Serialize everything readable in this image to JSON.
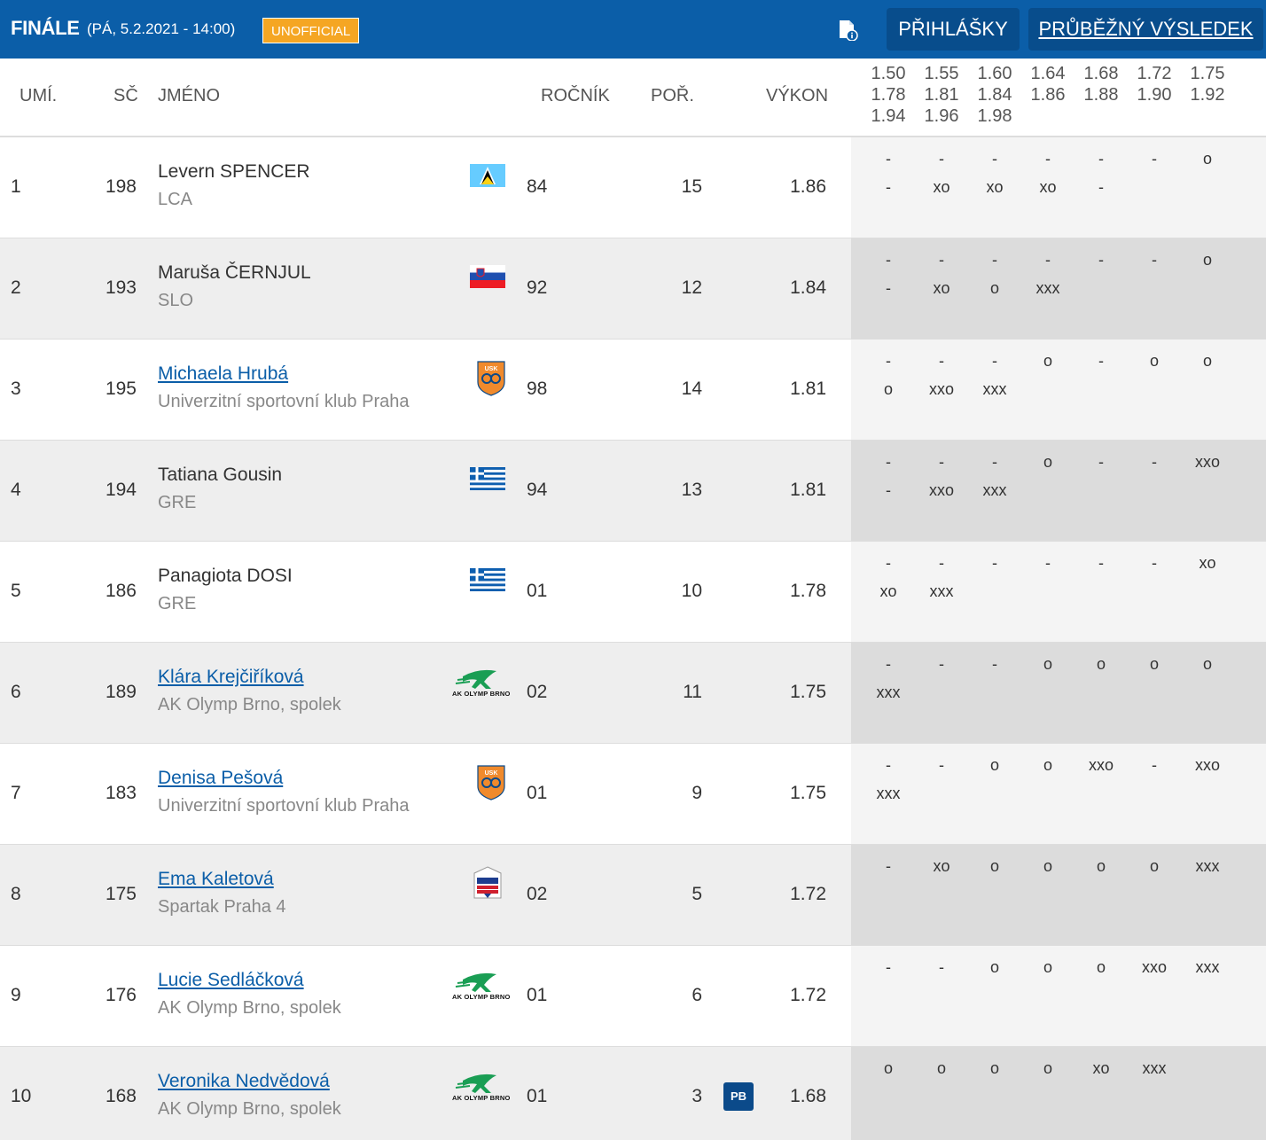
{
  "header": {
    "title": "FINÁLE",
    "subtitle": "(PÁ, 5.2.2021 - 14:00)",
    "badge": "UNOFFICIAL",
    "doc_icon": "document-info-icon",
    "entries_label": "PŘIHLÁŠKY",
    "results_label": "PRŮBĚŽNÝ VÝSLEDEK",
    "colors": {
      "bar": "#0b5ea8",
      "button": "#084d8c",
      "badge": "#f5a623"
    }
  },
  "columns": {
    "rank": "UMÍ.",
    "bib": "SČ",
    "name": "JMÉNO",
    "year": "ROČNÍK",
    "order": "POŘ.",
    "perf": "VÝKON"
  },
  "heights": [
    [
      "1.50",
      "1.55",
      "1.60",
      "1.64",
      "1.68",
      "1.72",
      "1.75"
    ],
    [
      "1.78",
      "1.81",
      "1.84",
      "1.86",
      "1.88",
      "1.90",
      "1.92"
    ],
    [
      "1.94",
      "1.96",
      "1.98"
    ]
  ],
  "rows": [
    {
      "rank": "1",
      "bib": "198",
      "name": "Levern SPENCER",
      "club": "LCA",
      "logo": "flag-lca",
      "year": "84",
      "order": "15",
      "perf": "1.86",
      "pb": "",
      "trials": [
        [
          "-",
          "-",
          "-",
          "-",
          "-",
          "-",
          "o"
        ],
        [
          "-",
          "xo",
          "xo",
          "xo",
          "-"
        ]
      ]
    },
    {
      "rank": "2",
      "bib": "193",
      "name": "Maruša ČERNJUL",
      "club": "SLO",
      "logo": "flag-slo",
      "year": "92",
      "order": "12",
      "perf": "1.84",
      "pb": "",
      "trials": [
        [
          "-",
          "-",
          "-",
          "-",
          "-",
          "-",
          "o"
        ],
        [
          "-",
          "xo",
          "o",
          "xxx"
        ]
      ]
    },
    {
      "rank": "3",
      "bib": "195",
      "name": "Michaela Hrubá",
      "club": "Univerzitní sportovní klub Praha",
      "logo": "usk",
      "year": "98",
      "order": "14",
      "perf": "1.81",
      "pb": "",
      "trials": [
        [
          "-",
          "-",
          "-",
          "o",
          "-",
          "o",
          "o"
        ],
        [
          "o",
          "xxo",
          "xxx"
        ]
      ]
    },
    {
      "rank": "4",
      "bib": "194",
      "name": "Tatiana Gousin",
      "club": "GRE",
      "logo": "flag-gre",
      "year": "94",
      "order": "13",
      "perf": "1.81",
      "pb": "",
      "trials": [
        [
          "-",
          "-",
          "-",
          "o",
          "-",
          "-",
          "xxo"
        ],
        [
          "-",
          "xxo",
          "xxx"
        ]
      ]
    },
    {
      "rank": "5",
      "bib": "186",
      "name": "Panagiota DOSI",
      "club": "GRE",
      "logo": "flag-gre",
      "year": "01",
      "order": "10",
      "perf": "1.78",
      "pb": "",
      "trials": [
        [
          "-",
          "-",
          "-",
          "-",
          "-",
          "-",
          "xo"
        ],
        [
          "xo",
          "xxx"
        ]
      ]
    },
    {
      "rank": "6",
      "bib": "189",
      "name": "Klára Krejčiříková",
      "club": "AK Olymp Brno, spolek",
      "logo": "olymp",
      "logo_text": "AK OLYMP BRNO",
      "year": "02",
      "order": "11",
      "perf": "1.75",
      "pb": "",
      "trials": [
        [
          "-",
          "-",
          "-",
          "o",
          "o",
          "o",
          "o"
        ],
        [
          "xxx"
        ]
      ]
    },
    {
      "rank": "7",
      "bib": "183",
      "name": "Denisa Pešová",
      "club": "Univerzitní sportovní klub Praha",
      "logo": "usk",
      "year": "01",
      "order": "9",
      "perf": "1.75",
      "pb": "",
      "trials": [
        [
          "-",
          "-",
          "o",
          "o",
          "xxo",
          "-",
          "xxo"
        ],
        [
          "xxx"
        ]
      ]
    },
    {
      "rank": "8",
      "bib": "175",
      "name": "Ema Kaletová",
      "club": "Spartak Praha 4",
      "logo": "spartak",
      "year": "02",
      "order": "5",
      "perf": "1.72",
      "pb": "",
      "trials": [
        [
          "-",
          "xo",
          "o",
          "o",
          "o",
          "o",
          "xxx"
        ],
        []
      ]
    },
    {
      "rank": "9",
      "bib": "176",
      "name": "Lucie Sedláčková",
      "club": "AK Olymp Brno, spolek",
      "logo": "olymp",
      "logo_text": "AK OLYMP BRNO",
      "year": "01",
      "order": "6",
      "perf": "1.72",
      "pb": "",
      "trials": [
        [
          "-",
          "-",
          "o",
          "o",
          "o",
          "xxo",
          "xxx"
        ],
        []
      ]
    },
    {
      "rank": "10",
      "bib": "168",
      "name": "Veronika Nedvědová",
      "club": "AK Olymp Brno, spolek",
      "logo": "olymp",
      "logo_text": "AK OLYMP BRNO",
      "year": "01",
      "order": "3",
      "perf": "1.68",
      "pb": "PB",
      "trials": [
        [
          "o",
          "o",
          "o",
          "o",
          "xo",
          "xxx"
        ],
        []
      ]
    }
  ]
}
